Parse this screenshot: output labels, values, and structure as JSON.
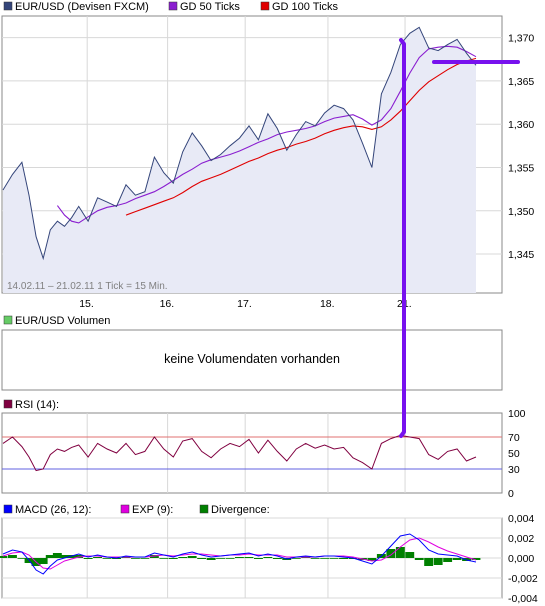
{
  "legend_price": [
    {
      "label": "EUR/USD (Devisen FXCM)",
      "color": "#34457a"
    },
    {
      "label": "GD 50 Ticks",
      "color": "#8a1ed0"
    },
    {
      "label": "GD 100 Ticks",
      "color": "#e00000"
    }
  ],
  "range_note": "14.02.11 – 21.02.11   1 Tick = 15 Min.",
  "volume": {
    "legend": "EUR/USD Volumen",
    "legend_color": "#66cc66",
    "message": "keine Volumendaten vorhanden"
  },
  "rsi": {
    "legend": "RSI (14):",
    "legend_color": "#800040",
    "ref_70": 70,
    "ref_30": 30
  },
  "macd": {
    "legend": [
      {
        "label": "MACD (26, 12):",
        "color": "#0000ff"
      },
      {
        "label": "EXP (9):",
        "color": "#e000e0"
      },
      {
        "label": "Divergence:",
        "color": "#008000"
      }
    ]
  },
  "colors": {
    "price_line": "#34457a",
    "price_fill": "#e8eaf6",
    "gd50": "#8a1ed0",
    "gd100": "#e00000",
    "rsi_line": "#800040",
    "rsi_70": "#e07070",
    "rsi_30": "#6060e0",
    "macd_line": "#0000ff",
    "exp_line": "#e000e0",
    "divergence": "#008000",
    "annotation": "#7711ee",
    "grid": "#d8d8d8",
    "frame": "#888888"
  },
  "chart_data": [
    {
      "type": "line",
      "title": "EUR/USD (Devisen FXCM)",
      "x_tick_labels": [
        "15.",
        "16.",
        "17.",
        "18.",
        "21."
      ],
      "ylim": [
        1.3405,
        1.3725
      ],
      "y_ticks": [
        1.345,
        1.35,
        1.355,
        1.36,
        1.365,
        1.37
      ],
      "y_tick_labels": [
        "1,345",
        "1,350",
        "1,355",
        "1,360",
        "1,365",
        "1,370"
      ],
      "grid": true,
      "x": [
        0,
        0.02,
        0.04,
        0.055,
        0.07,
        0.085,
        0.1,
        0.115,
        0.13,
        0.145,
        0.16,
        0.18,
        0.2,
        0.22,
        0.24,
        0.26,
        0.28,
        0.3,
        0.32,
        0.34,
        0.36,
        0.38,
        0.4,
        0.42,
        0.44,
        0.46,
        0.48,
        0.5,
        0.52,
        0.54,
        0.56,
        0.58,
        0.6,
        0.62,
        0.64,
        0.66,
        0.68,
        0.7,
        0.72,
        0.74,
        0.76,
        0.78,
        0.8,
        0.82,
        0.84,
        0.86,
        0.88,
        0.9,
        0.92,
        0.94,
        0.96,
        0.98,
        1.0
      ],
      "series": [
        {
          "name": "EUR/USD (Devisen FXCM)",
          "values": [
            1.3524,
            1.3542,
            1.3556,
            1.3518,
            1.347,
            1.3445,
            1.3478,
            1.3488,
            1.3482,
            1.3492,
            1.3505,
            1.3488,
            1.3515,
            1.351,
            1.3505,
            1.353,
            1.3518,
            1.3522,
            1.3562,
            1.3544,
            1.3532,
            1.3568,
            1.359,
            1.3575,
            1.3558,
            1.3565,
            1.3575,
            1.3584,
            1.3598,
            1.3582,
            1.3612,
            1.3595,
            1.357,
            1.3588,
            1.3603,
            1.3598,
            1.3613,
            1.3622,
            1.3618,
            1.3605,
            1.3578,
            1.355,
            1.3635,
            1.366,
            1.3692,
            1.3705,
            1.3712,
            1.3688,
            1.3685,
            1.3692,
            1.3698,
            1.3682,
            1.3668
          ]
        },
        {
          "name": "GD 50 Ticks",
          "values": [
            null,
            null,
            null,
            null,
            null,
            null,
            null,
            1.3506,
            1.3495,
            1.3488,
            1.3486,
            1.3493,
            1.35,
            1.3504,
            1.3506,
            1.3509,
            1.3514,
            1.3518,
            1.3522,
            1.3528,
            1.3535,
            1.3542,
            1.3548,
            1.3555,
            1.3559,
            1.3562,
            1.3565,
            1.3569,
            1.3574,
            1.3579,
            1.3583,
            1.3588,
            1.3591,
            1.3593,
            1.3595,
            1.3598,
            1.3603,
            1.3607,
            1.3609,
            1.3611,
            1.3606,
            1.3599,
            1.3605,
            1.3618,
            1.3638,
            1.3659,
            1.3677,
            1.3687,
            1.3689,
            1.369,
            1.3689,
            1.3684,
            1.3678
          ]
        },
        {
          "name": "GD 100 Ticks",
          "values": [
            null,
            null,
            null,
            null,
            null,
            null,
            null,
            null,
            null,
            null,
            null,
            null,
            null,
            null,
            null,
            1.3495,
            1.3499,
            1.3503,
            1.3507,
            1.3511,
            1.3515,
            1.3521,
            1.3528,
            1.3534,
            1.3538,
            1.3542,
            1.3547,
            1.3552,
            1.3557,
            1.3561,
            1.3566,
            1.357,
            1.3573,
            1.3577,
            1.358,
            1.3584,
            1.3589,
            1.3593,
            1.3596,
            1.3598,
            1.3597,
            1.3594,
            1.3597,
            1.3605,
            1.3615,
            1.3627,
            1.3639,
            1.3649,
            1.3656,
            1.3663,
            1.3669,
            1.3673,
            1.3676
          ]
        }
      ]
    },
    {
      "type": "line",
      "title": "RSI (14):",
      "ylim": [
        0,
        100
      ],
      "y_ticks": [
        0,
        30,
        50,
        70,
        100
      ],
      "y_tick_labels": [
        "0",
        "30",
        "50",
        "70",
        "100"
      ],
      "x": [
        0,
        0.02,
        0.04,
        0.055,
        0.07,
        0.085,
        0.1,
        0.115,
        0.13,
        0.145,
        0.16,
        0.18,
        0.2,
        0.22,
        0.24,
        0.26,
        0.28,
        0.3,
        0.32,
        0.34,
        0.36,
        0.38,
        0.4,
        0.42,
        0.44,
        0.46,
        0.48,
        0.5,
        0.52,
        0.54,
        0.56,
        0.58,
        0.6,
        0.62,
        0.64,
        0.66,
        0.68,
        0.7,
        0.72,
        0.74,
        0.76,
        0.78,
        0.8,
        0.82,
        0.84,
        0.86,
        0.88,
        0.9,
        0.92,
        0.94,
        0.96,
        0.98,
        1.0
      ],
      "series": [
        {
          "name": "RSI (14):",
          "values": [
            62,
            70,
            58,
            45,
            28,
            30,
            48,
            55,
            52,
            57,
            60,
            45,
            62,
            55,
            50,
            62,
            48,
            52,
            70,
            55,
            45,
            65,
            68,
            52,
            44,
            55,
            62,
            58,
            67,
            50,
            66,
            52,
            40,
            55,
            62,
            56,
            60,
            55,
            57,
            44,
            38,
            30,
            62,
            68,
            72,
            70,
            68,
            48,
            42,
            52,
            55,
            40,
            45
          ]
        }
      ]
    },
    {
      "type": "line",
      "title": "MACD (26, 12):",
      "ylim": [
        -0.004,
        0.004
      ],
      "y_ticks": [
        -0.004,
        -0.002,
        0,
        0.002,
        0.004
      ],
      "y_tick_labels": [
        "-0,004",
        "-0,002",
        "0,000",
        "0,002",
        "0,004"
      ],
      "x": [
        0,
        0.02,
        0.04,
        0.055,
        0.07,
        0.085,
        0.1,
        0.115,
        0.13,
        0.145,
        0.16,
        0.18,
        0.2,
        0.22,
        0.24,
        0.26,
        0.28,
        0.3,
        0.32,
        0.34,
        0.36,
        0.38,
        0.4,
        0.42,
        0.44,
        0.46,
        0.48,
        0.5,
        0.52,
        0.54,
        0.56,
        0.58,
        0.6,
        0.62,
        0.64,
        0.66,
        0.68,
        0.7,
        0.72,
        0.74,
        0.76,
        0.78,
        0.8,
        0.82,
        0.84,
        0.86,
        0.88,
        0.9,
        0.92,
        0.94,
        0.96,
        0.98,
        1.0
      ],
      "series": [
        {
          "name": "MACD (26, 12):",
          "values": [
            0.0004,
            0.0008,
            0.0006,
            -0.0002,
            -0.0012,
            -0.0016,
            -0.0008,
            -0.0002,
            0,
            0.0002,
            0.0004,
            0.0001,
            0.0003,
            0.0001,
            0,
            0.0002,
            0.0001,
            0.0001,
            0.0005,
            0.0003,
            0.0001,
            0.0004,
            0.0006,
            0.0003,
            0.0001,
            0.0002,
            0.0003,
            0.0004,
            0.0005,
            0.0002,
            0.0004,
            0.0002,
            -0.0001,
            0.0001,
            0.0002,
            0.0001,
            0.0002,
            0.0002,
            0.0001,
            0,
            -0.0003,
            -0.0006,
            0.0002,
            0.0012,
            0.0022,
            0.0024,
            0.0018,
            0.0008,
            0.0004,
            0.0003,
            0.0002,
            -0.0002,
            -0.0004
          ]
        },
        {
          "name": "EXP (9):",
          "values": [
            0.0002,
            0.0005,
            0.0006,
            0.0003,
            -0.0004,
            -0.001,
            -0.0011,
            -0.0007,
            -0.0003,
            -0.0001,
            0.0001,
            0.0002,
            0.0002,
            0.0001,
            0.0001,
            0.0001,
            0.0001,
            0.0001,
            0.0002,
            0.0003,
            0.0002,
            0.0003,
            0.0004,
            0.0004,
            0.0003,
            0.0002,
            0.0003,
            0.0003,
            0.0004,
            0.0003,
            0.0003,
            0.0003,
            0.0001,
            0.0001,
            0.0001,
            0.0001,
            0.0002,
            0.0002,
            0.0002,
            0.0001,
            -0.0001,
            -0.0003,
            -0.0002,
            0.0003,
            0.0011,
            0.0018,
            0.002,
            0.0016,
            0.0011,
            0.0007,
            0.0004,
            0.0001,
            -0.0002
          ]
        },
        {
          "name": "Divergence:",
          "values": [
            0.0002,
            0.0003,
            0,
            -0.0005,
            -0.0008,
            -0.0006,
            0.0003,
            0.0005,
            0.0003,
            0.0003,
            0.0003,
            -0.0001,
            0.0001,
            0,
            -0.0001,
            0.0001,
            0,
            0,
            0.0003,
            0,
            -0.0001,
            0.0001,
            0.0002,
            -0.0001,
            -0.0002,
            0,
            0,
            0.0001,
            0.0001,
            -0.0001,
            0.0001,
            -0.0001,
            -0.0002,
            0,
            0.0001,
            0,
            0,
            0,
            -0.0001,
            -0.0001,
            -0.0002,
            -0.0003,
            0.0004,
            0.0009,
            0.0011,
            0.0006,
            -0.0002,
            -0.0008,
            -0.0007,
            -0.0004,
            -0.0002,
            -0.0003,
            -0.0002
          ]
        }
      ]
    }
  ]
}
